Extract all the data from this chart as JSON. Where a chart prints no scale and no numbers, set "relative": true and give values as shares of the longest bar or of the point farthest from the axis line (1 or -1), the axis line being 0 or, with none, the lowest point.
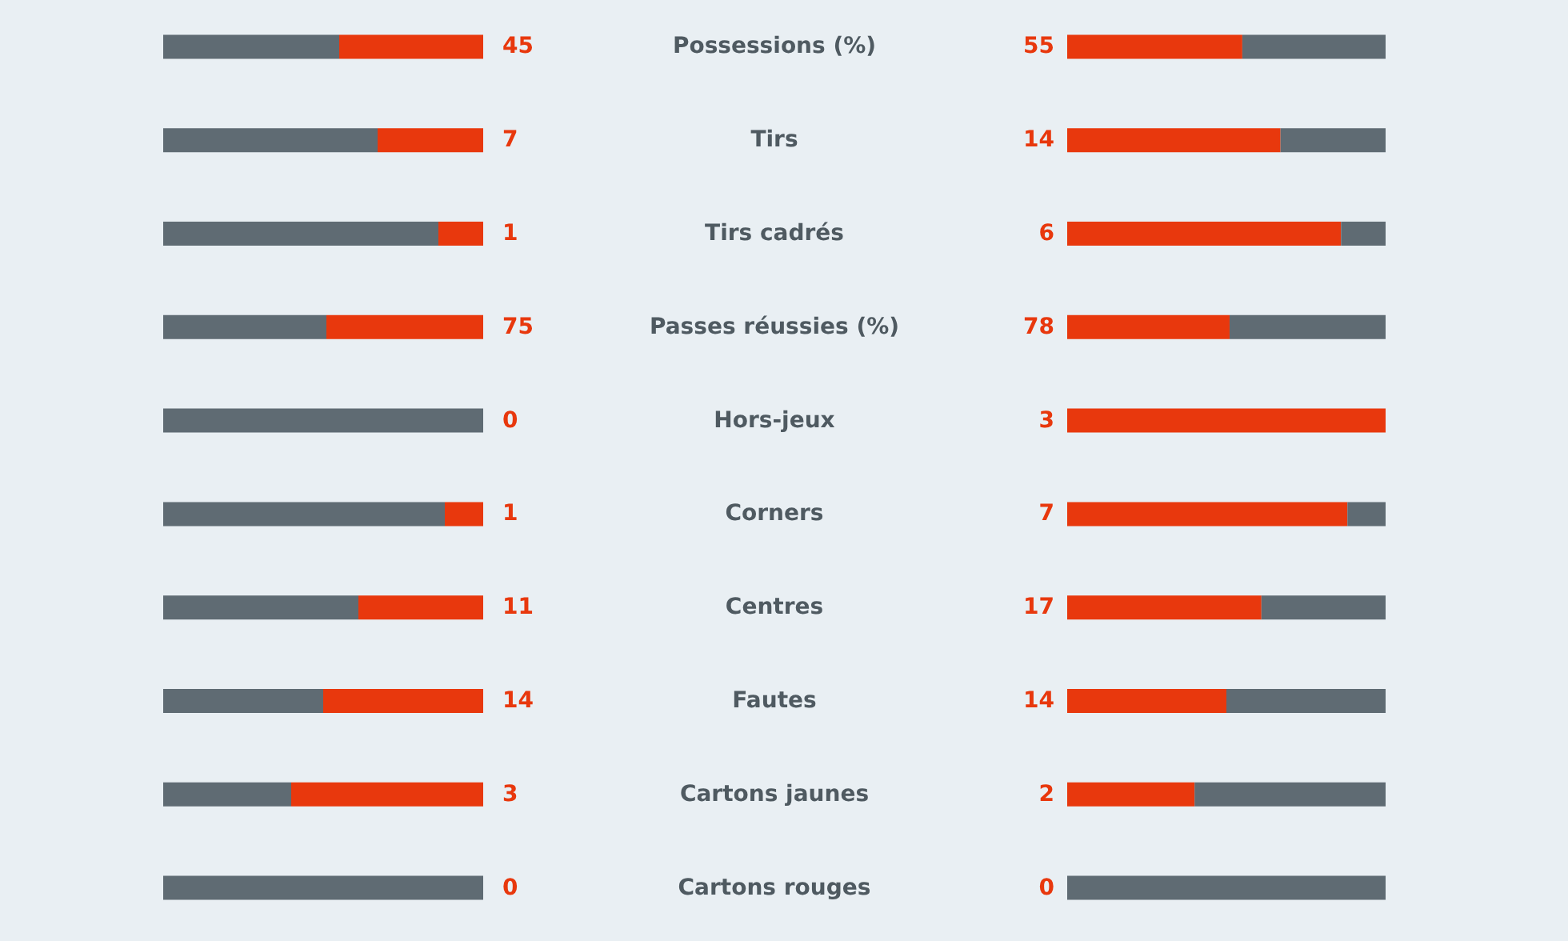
{
  "chart_data": [
    {
      "type": "bar",
      "orientation": "horizontal",
      "stacked": true,
      "relative": true,
      "categories": [
        null,
        null,
        null,
        null,
        null,
        null,
        null,
        null,
        null,
        null
      ],
      "series": [
        {
          "color": "#5f6b73",
          "values": [
            0.55,
            0.67,
            0.86,
            0.51,
            1,
            0.88,
            0.61,
            0.5,
            0.4,
            1
          ]
        },
        {
          "color": "#e8380d",
          "values": [
            0.45,
            0.33,
            0.14,
            0.49,
            0,
            0.12,
            0.39,
            0.5,
            0.6,
            0
          ]
        }
      ],
      "annotations": [
        "45",
        "7",
        "1",
        "75",
        "0",
        "1",
        "11",
        "14",
        "3",
        "0"
      ]
    },
    {
      "type": "bar",
      "orientation": "horizontal",
      "stacked": true,
      "relative": true,
      "categories": [
        "Possessions (%)",
        "Tirs",
        "Tirs cadrés",
        "Passes réussies (%)",
        "Hors-jeux",
        "Corners",
        "Centres",
        "Fautes",
        "Cartons jaunes",
        "Cartons rouges"
      ],
      "series": [
        {
          "color": "#e8380d",
          "values": [
            0.55,
            0.67,
            0.86,
            0.51,
            1,
            0.88,
            0.61,
            0.5,
            0.4,
            0
          ]
        },
        {
          "color": "#5f6b73",
          "values": [
            0.45,
            0.33,
            0.14,
            0.49,
            0,
            0.12,
            0.39,
            0.5,
            0.6,
            1
          ]
        }
      ],
      "annotations": [
        "55",
        "14",
        "6",
        "78",
        "3",
        "7",
        "17",
        "14",
        "2",
        "0"
      ]
    }
  ]
}
